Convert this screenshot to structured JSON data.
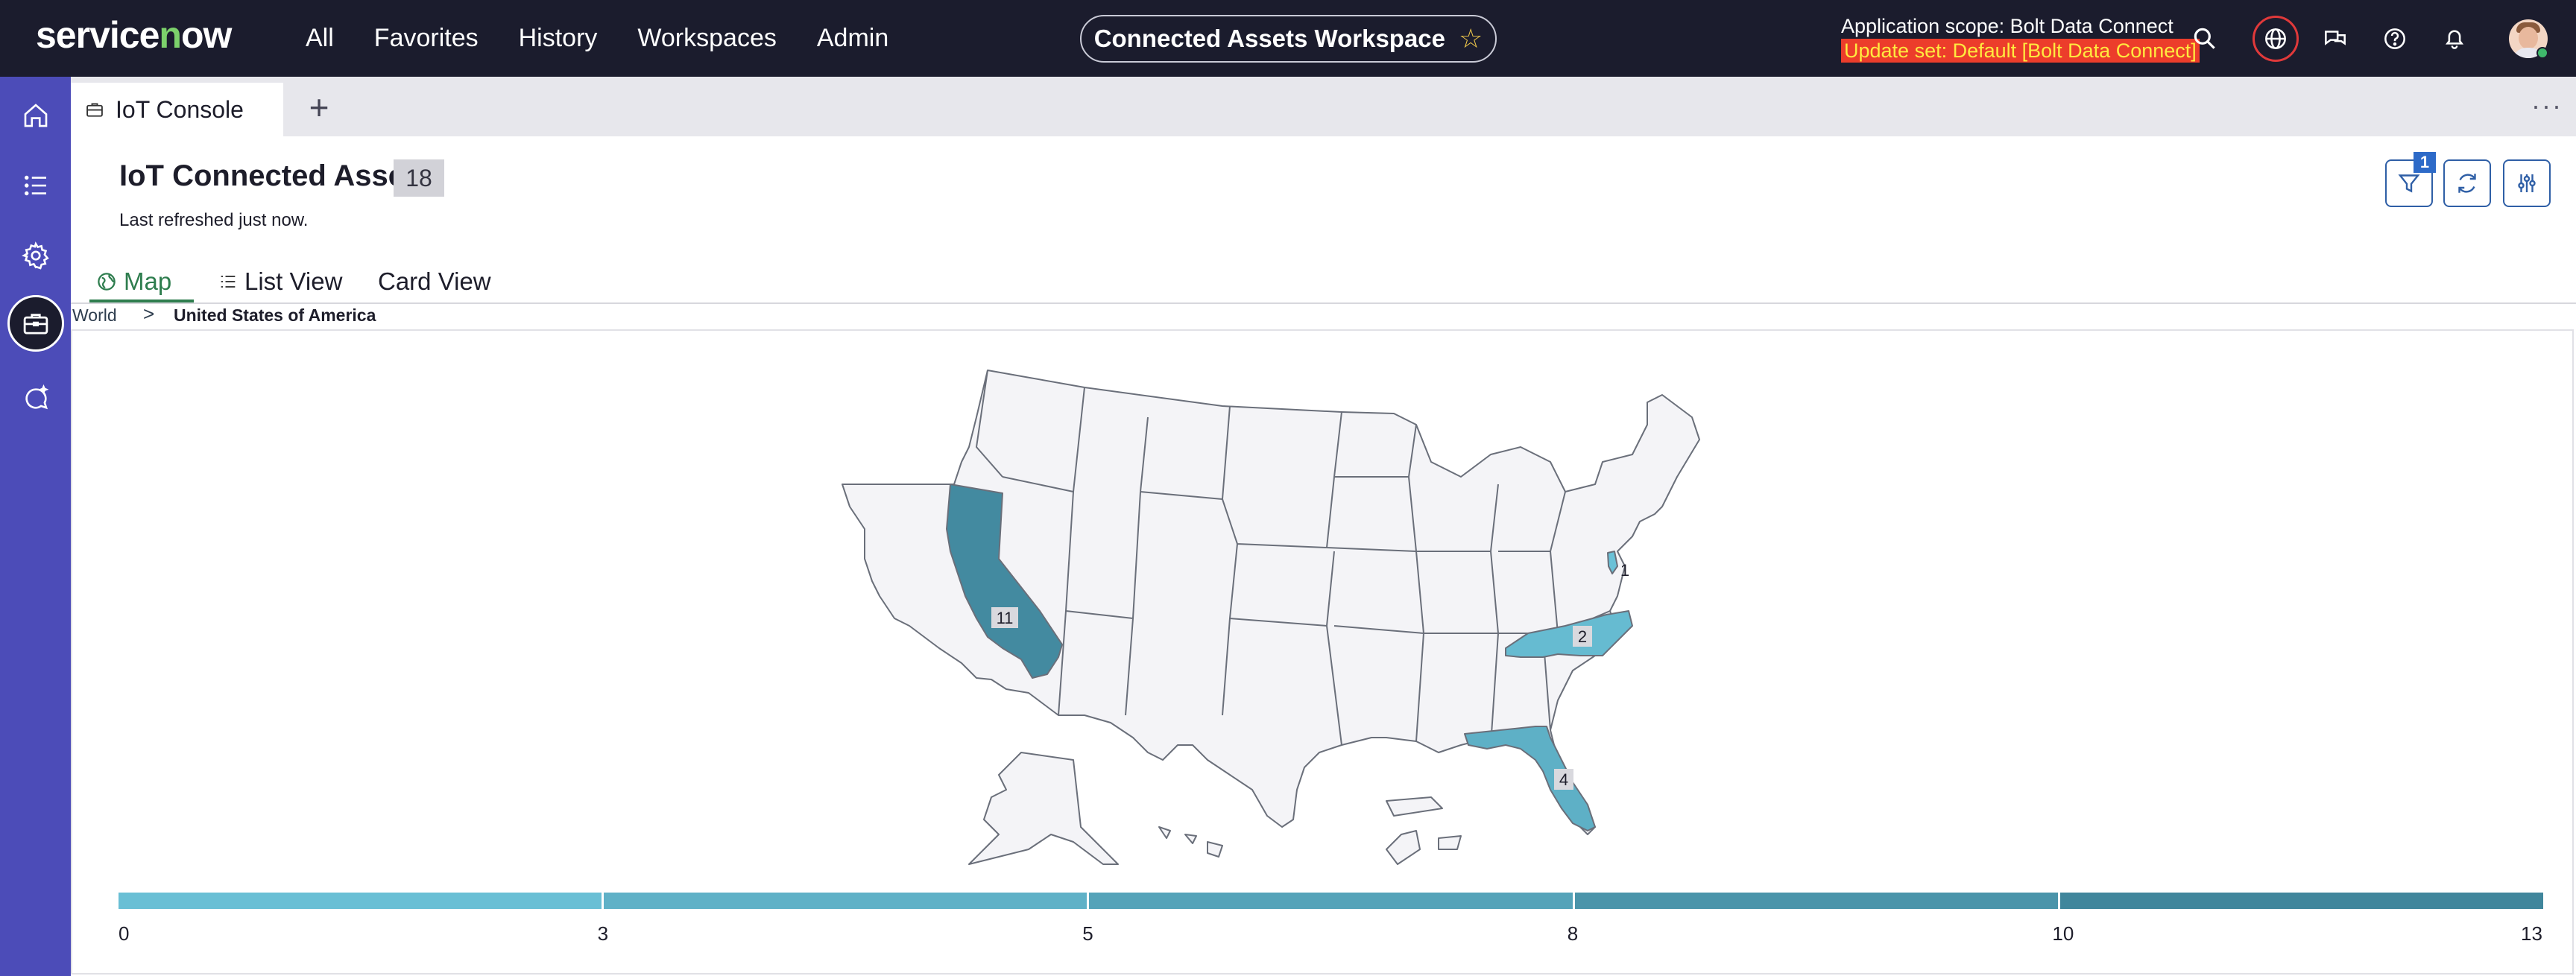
{
  "topnav": {
    "logo": "servicenow",
    "menu": [
      "All",
      "Favorites",
      "History",
      "Workspaces",
      "Admin"
    ],
    "workspace_title": "Connected Assets Workspace",
    "scope_line": "Application scope: Bolt Data Connect",
    "update_set": "Update set: Default [Bolt Data Connect]",
    "icons": [
      "search-icon",
      "globe-icon",
      "chat-icon",
      "help-icon",
      "bell-icon",
      "avatar"
    ]
  },
  "rail": {
    "items": [
      "home-icon",
      "list-icon",
      "gear-icon",
      "briefcase-icon",
      "sparkle-chat-icon"
    ],
    "active": "briefcase-icon"
  },
  "tabs": {
    "current": "IoT Console",
    "add_label": "+",
    "more_label": "···"
  },
  "header": {
    "title": "IoT Connected Asset",
    "count": "18",
    "refreshed": "Last refreshed just now.",
    "filter_badge": "1"
  },
  "view_tabs": [
    "Map",
    "List View",
    "Card View"
  ],
  "breadcrumb": {
    "world": "World",
    "separator": ">",
    "current": "United States of America"
  },
  "colors": {
    "nav_bg": "#1b1c2d",
    "rail_bg": "#4c4cb8",
    "accent_green": "#2e7d4e",
    "state_default": "#f4f4f7",
    "scale_low": "#6ec6dc",
    "scale_high": "#3b7f95"
  },
  "chart_data": {
    "type": "heatmap",
    "regions": [
      {
        "state": "California",
        "value": 11
      },
      {
        "state": "Florida",
        "value": 4
      },
      {
        "state": "North Carolina",
        "value": 2
      },
      {
        "state": "Delaware",
        "value": 1
      }
    ],
    "scale_ticks": [
      "0",
      "3",
      "5",
      "8",
      "10",
      "13"
    ],
    "scale_range": [
      0,
      13
    ]
  }
}
